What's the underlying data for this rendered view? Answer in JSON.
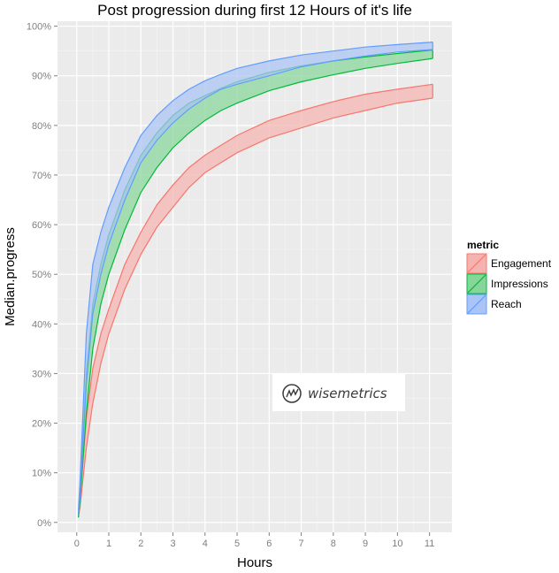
{
  "chart_data": {
    "type": "area",
    "title": "Post progression during first 12 Hours of it's life",
    "xlabel": "Hours",
    "ylabel": "Median.progress",
    "xlim": [
      -0.6,
      11.7
    ],
    "ylim": [
      -2,
      101
    ],
    "xticks": [
      0,
      1,
      2,
      3,
      4,
      5,
      6,
      7,
      8,
      9,
      10,
      11
    ],
    "xtick_labels": [
      "0",
      "1",
      "2",
      "3",
      "4",
      "5",
      "6",
      "7",
      "8",
      "9",
      "10",
      "11"
    ],
    "yticks": [
      0,
      10,
      20,
      30,
      40,
      50,
      60,
      70,
      80,
      90,
      100
    ],
    "ytick_labels": [
      "0%",
      "10%",
      "20%",
      "30%",
      "40%",
      "50%",
      "60%",
      "70%",
      "80%",
      "90%",
      "100%"
    ],
    "grid": true,
    "legend": {
      "title": "metric",
      "position": "right"
    },
    "x": [
      0.05,
      0.1,
      0.3,
      0.5,
      0.75,
      1,
      1.5,
      2,
      2.5,
      3,
      3.5,
      4,
      4.5,
      5,
      6,
      7,
      8,
      9,
      10,
      11.1
    ],
    "series": [
      {
        "name": "Engagement",
        "color": "#f8766d",
        "fill": "#f4b3ae",
        "lower": [
          1,
          3,
          15,
          24,
          32,
          38,
          47,
          54,
          59.5,
          63.5,
          67.5,
          70.5,
          72.5,
          74.5,
          77.5,
          79.5,
          81.5,
          83,
          84.5,
          85.5
        ],
        "upper": [
          1.5,
          5,
          21,
          31,
          38,
          43,
          52,
          58.5,
          64,
          68,
          71.5,
          74,
          76,
          78,
          81,
          83,
          84.8,
          86.3,
          87.3,
          88.3
        ]
      },
      {
        "name": "Impressions",
        "color": "#00ba38",
        "fill": "#86d69a",
        "lower": [
          1,
          4,
          22,
          35,
          44,
          50,
          59,
          66.5,
          71.5,
          75.5,
          78.5,
          81,
          83,
          84.5,
          87,
          88.8,
          90.2,
          91.5,
          92.5,
          93.5
        ],
        "upper": [
          1.5,
          6,
          30,
          44,
          52,
          58,
          67,
          74,
          78.5,
          82,
          84.5,
          86,
          87.5,
          88.8,
          90.7,
          92,
          93,
          93.8,
          94.5,
          95.2
        ]
      },
      {
        "name": "Reach",
        "color": "#619cff",
        "fill": "#a9c4f5",
        "lower": [
          1.5,
          5,
          28,
          42,
          50,
          56,
          65,
          72.5,
          77,
          80.5,
          83.3,
          85.5,
          87.3,
          88.3,
          90,
          91.8,
          93,
          94,
          94.8,
          95.3
        ],
        "upper": [
          2.5,
          8,
          38,
          52,
          58.5,
          63.5,
          71.5,
          78,
          82,
          85,
          87.3,
          89,
          90.3,
          91.5,
          93,
          94.2,
          95,
          95.8,
          96.3,
          96.8
        ]
      }
    ]
  },
  "watermark": {
    "text": "wisemetrics",
    "icon": "wisemetrics-logo-icon"
  }
}
